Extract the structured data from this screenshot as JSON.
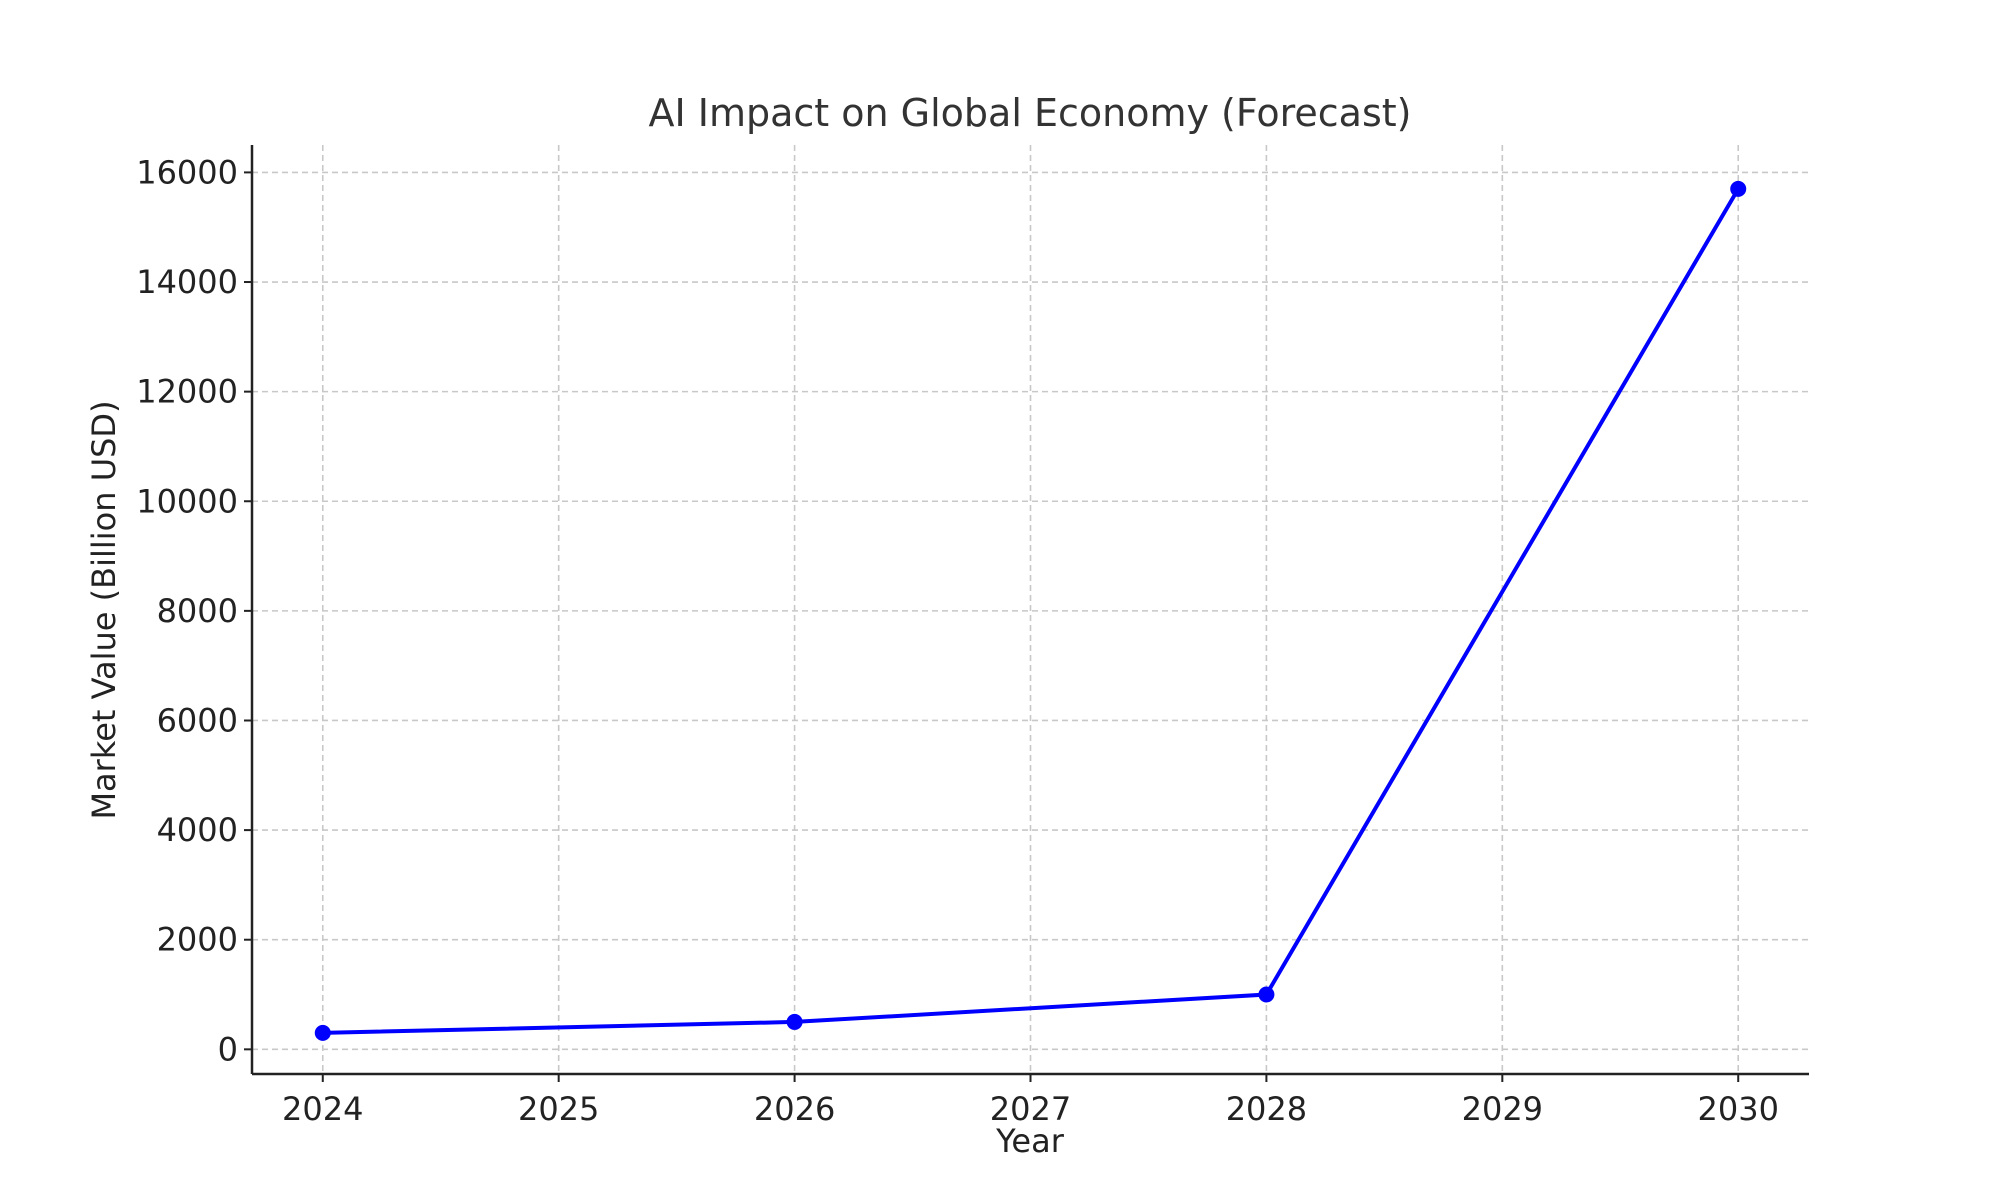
{
  "chart_data": {
    "type": "line",
    "title": "AI Impact on Global Economy (Forecast)",
    "xlabel": "Year",
    "ylabel": "Market Value (Billion USD)",
    "x": [
      2024,
      2026,
      2028,
      2030
    ],
    "series": [
      {
        "name": "Market Value",
        "values": [
          300,
          500,
          1000,
          15700
        ],
        "color": "#0000ff",
        "marker": "circle"
      }
    ],
    "xlim": [
      2023.7,
      2030.3
    ],
    "ylim": [
      -450,
      16500
    ],
    "xticks": [
      "2024",
      "2025",
      "2026",
      "2027",
      "2028",
      "2029",
      "2030"
    ],
    "yticks": [
      "0",
      "2000",
      "4000",
      "6000",
      "8000",
      "10000",
      "12000",
      "14000",
      "16000"
    ],
    "grid": true
  }
}
